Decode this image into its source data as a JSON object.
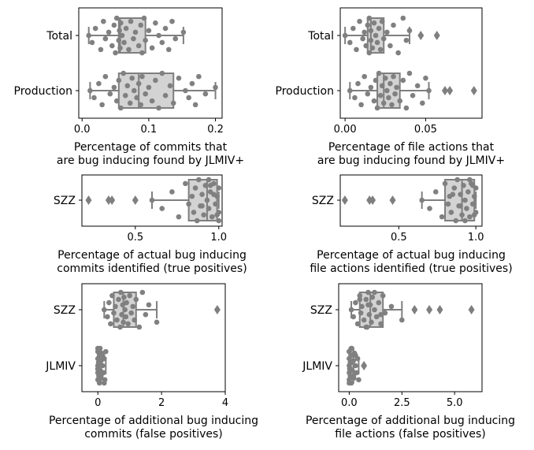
{
  "chart_data": [
    {
      "type": "box-swarm",
      "xlabel": [
        "Percentage of commits that",
        "are bug inducing found by JLMIV+"
      ],
      "xlim": [
        -0.005,
        0.21
      ],
      "xticks": [
        0.0,
        0.1,
        0.2
      ],
      "xtick_labels": [
        "0.0",
        "0.1",
        "0.2"
      ],
      "categories": [
        {
          "name": "Total",
          "box": {
            "q1": 0.055,
            "median": 0.057,
            "q3": 0.095,
            "whisker_low": 0.01,
            "whisker_high": 0.152
          },
          "fliers": [],
          "points": [
            0.01,
            0.015,
            0.02,
            0.028,
            0.032,
            0.035,
            0.04,
            0.045,
            0.048,
            0.05,
            0.052,
            0.055,
            0.056,
            0.057,
            0.058,
            0.06,
            0.063,
            0.066,
            0.07,
            0.073,
            0.077,
            0.08,
            0.085,
            0.088,
            0.09,
            0.093,
            0.095,
            0.1,
            0.105,
            0.11,
            0.115,
            0.12,
            0.125,
            0.13,
            0.135,
            0.14,
            0.152
          ]
        },
        {
          "name": "Production",
          "box": {
            "q1": 0.055,
            "median": 0.085,
            "q3": 0.137,
            "whisker_low": 0.012,
            "whisker_high": 0.2
          },
          "fliers": [],
          "points": [
            0.012,
            0.018,
            0.025,
            0.03,
            0.035,
            0.042,
            0.048,
            0.052,
            0.055,
            0.058,
            0.062,
            0.065,
            0.068,
            0.072,
            0.075,
            0.078,
            0.082,
            0.085,
            0.088,
            0.09,
            0.095,
            0.1,
            0.105,
            0.11,
            0.115,
            0.12,
            0.125,
            0.132,
            0.137,
            0.145,
            0.155,
            0.16,
            0.165,
            0.17,
            0.175,
            0.185,
            0.2
          ]
        }
      ]
    },
    {
      "type": "box-swarm",
      "xlabel": [
        "Percentage of file actions that",
        "are bug inducing found by JLMIV+"
      ],
      "xlim": [
        -0.003,
        0.085
      ],
      "xticks": [
        0.0,
        0.05
      ],
      "xtick_labels": [
        "0.00",
        "0.05"
      ],
      "categories": [
        {
          "name": "Total",
          "box": {
            "q1": 0.014,
            "median": 0.016,
            "q3": 0.024,
            "whisker_low": 0.0,
            "whisker_high": 0.04
          },
          "fliers": [
            0.047,
            0.057
          ],
          "points": [
            0.0,
            0.003,
            0.005,
            0.007,
            0.009,
            0.011,
            0.012,
            0.013,
            0.014,
            0.015,
            0.015,
            0.016,
            0.016,
            0.017,
            0.018,
            0.019,
            0.02,
            0.021,
            0.022,
            0.023,
            0.024,
            0.026,
            0.028,
            0.03,
            0.033,
            0.036,
            0.038,
            0.04
          ]
        },
        {
          "name": "Production",
          "box": {
            "q1": 0.02,
            "median": 0.024,
            "q3": 0.034,
            "whisker_low": 0.003,
            "whisker_high": 0.052
          },
          "fliers": [
            0.062,
            0.065,
            0.08
          ],
          "points": [
            0.003,
            0.006,
            0.008,
            0.01,
            0.012,
            0.014,
            0.016,
            0.018,
            0.019,
            0.02,
            0.021,
            0.022,
            0.023,
            0.024,
            0.025,
            0.026,
            0.027,
            0.028,
            0.029,
            0.03,
            0.031,
            0.032,
            0.034,
            0.036,
            0.038,
            0.04,
            0.042,
            0.045,
            0.048,
            0.05,
            0.052
          ]
        }
      ]
    },
    {
      "type": "box-swarm",
      "xlabel": [
        "Percentage of actual bug inducing",
        "commits identified (true positives)"
      ],
      "xlim": [
        0.18,
        1.02
      ],
      "xticks": [
        0.5,
        1.0
      ],
      "xtick_labels": [
        "0.5",
        "1.0"
      ],
      "categories": [
        {
          "name": "SZZ",
          "box": {
            "q1": 0.82,
            "median": 0.93,
            "q3": 0.99,
            "whisker_low": 0.6,
            "whisker_high": 1.0
          },
          "fliers": [
            0.22,
            0.34,
            0.36,
            0.5
          ],
          "points": [
            0.6,
            0.66,
            0.72,
            0.76,
            0.8,
            0.82,
            0.84,
            0.85,
            0.86,
            0.87,
            0.88,
            0.89,
            0.9,
            0.91,
            0.92,
            0.93,
            0.94,
            0.95,
            0.96,
            0.97,
            0.98,
            0.99,
            1.0,
            1.0,
            1.0,
            0.94,
            0.9,
            0.97,
            0.99,
            0.95
          ]
        }
      ]
    },
    {
      "type": "box-swarm",
      "xlabel": [
        "Percentage of actual bug inducing",
        "file actions identified (true positives)"
      ],
      "xlim": [
        0.12,
        1.04
      ],
      "xticks": [
        0.5,
        1.0
      ],
      "xtick_labels": [
        "0.5",
        "1.0"
      ],
      "categories": [
        {
          "name": "SZZ",
          "box": {
            "q1": 0.8,
            "median": 0.91,
            "q3": 0.99,
            "whisker_low": 0.65,
            "whisker_high": 1.0
          },
          "fliers": [
            0.15,
            0.31,
            0.33,
            0.46
          ],
          "points": [
            0.65,
            0.7,
            0.74,
            0.78,
            0.8,
            0.82,
            0.83,
            0.84,
            0.86,
            0.87,
            0.88,
            0.89,
            0.9,
            0.91,
            0.92,
            0.93,
            0.94,
            0.95,
            0.96,
            0.97,
            0.98,
            0.99,
            1.0,
            1.0,
            0.93,
            0.96,
            0.9,
            0.85,
            0.99,
            0.98
          ]
        }
      ]
    },
    {
      "type": "box-swarm",
      "xlabel": [
        "Percentage of additional bug inducing",
        "commits (false positives)"
      ],
      "xlim": [
        -0.5,
        4.0
      ],
      "xticks": [
        0,
        2,
        4
      ],
      "xtick_labels": [
        "0",
        "2",
        "4"
      ],
      "categories": [
        {
          "name": "SZZ",
          "box": {
            "q1": 0.5,
            "median": 0.8,
            "q3": 1.2,
            "whisker_low": 0.2,
            "whisker_high": 1.85
          },
          "fliers": [
            3.75
          ],
          "points": [
            0.2,
            0.3,
            0.35,
            0.4,
            0.45,
            0.5,
            0.55,
            0.6,
            0.65,
            0.7,
            0.72,
            0.75,
            0.78,
            0.8,
            0.82,
            0.85,
            0.88,
            0.9,
            0.95,
            1.0,
            1.05,
            1.1,
            1.15,
            1.2,
            1.3,
            1.4,
            1.5,
            1.6,
            1.85
          ]
        },
        {
          "name": "JLMIV",
          "box": {
            "q1": 0.0,
            "median": 0.0,
            "q3": 0.1,
            "whisker_low": 0.0,
            "whisker_high": 0.25
          },
          "fliers": [],
          "points": [
            0.0,
            0.0,
            0.0,
            0.0,
            0.0,
            0.0,
            0.02,
            0.03,
            0.05,
            0.05,
            0.07,
            0.08,
            0.1,
            0.1,
            0.12,
            0.15,
            0.18,
            0.2,
            0.22,
            0.25,
            0.0,
            0.05,
            0.1,
            0.15,
            0.2,
            0.0,
            0.05,
            0.1
          ]
        }
      ]
    },
    {
      "type": "box-swarm",
      "xlabel": [
        "Percentage of additional bug inducing",
        "file actions (false positives)"
      ],
      "xlim": [
        -0.5,
        6.3
      ],
      "xticks": [
        0.0,
        2.5,
        5.0
      ],
      "xtick_labels": [
        "0.0",
        "2.5",
        "5.0"
      ],
      "categories": [
        {
          "name": "SZZ",
          "box": {
            "q1": 0.5,
            "median": 1.0,
            "q3": 1.6,
            "whisker_low": 0.1,
            "whisker_high": 2.5
          },
          "fliers": [
            3.1,
            3.8,
            4.3,
            5.8
          ],
          "points": [
            0.1,
            0.2,
            0.3,
            0.4,
            0.5,
            0.55,
            0.6,
            0.7,
            0.8,
            0.85,
            0.9,
            0.95,
            1.0,
            1.05,
            1.1,
            1.2,
            1.3,
            1.4,
            1.5,
            1.6,
            1.7,
            2.0,
            2.5,
            0.5,
            0.8,
            1.2,
            1.5,
            0.9
          ]
        },
        {
          "name": "JLMIV",
          "box": {
            "q1": 0.0,
            "median": 0.05,
            "q3": 0.2,
            "whisker_low": 0.0,
            "whisker_high": 0.45
          },
          "fliers": [
            0.7
          ],
          "points": [
            0.0,
            0.0,
            0.0,
            0.0,
            0.0,
            0.02,
            0.05,
            0.05,
            0.08,
            0.1,
            0.12,
            0.15,
            0.2,
            0.22,
            0.25,
            0.3,
            0.35,
            0.4,
            0.45,
            0.0,
            0.05,
            0.1,
            0.2,
            0.3,
            0.0,
            0.1
          ]
        }
      ]
    }
  ]
}
